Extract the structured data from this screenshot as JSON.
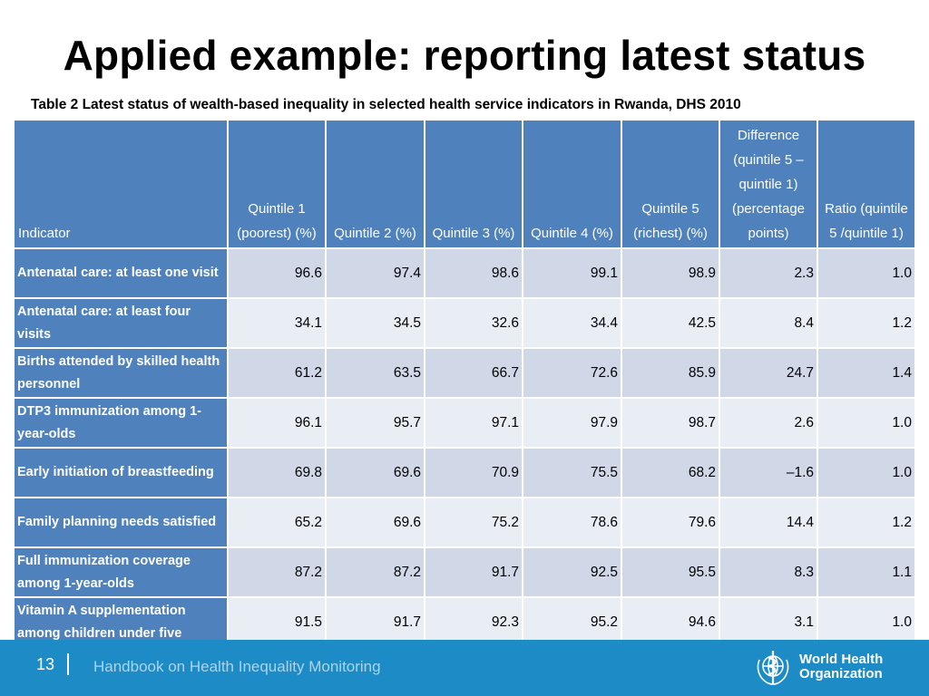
{
  "slide": {
    "title": "Applied example: reporting latest status",
    "caption": "Table 2 Latest status of wealth-based inequality in selected health service indicators in Rwanda, DHS 2010"
  },
  "table": {
    "headers": [
      "Indicator",
      "Quintile 1 (poorest) (%)",
      "Quintile 2 (%)",
      "Quintile 3 (%)",
      "Quintile 4 (%)",
      "Quintile 5 (richest) (%)",
      "Difference (quintile 5 – quintile 1) (percentage points)",
      "Ratio (quintile 5 /quintile 1)"
    ],
    "rows": [
      {
        "indicator": "Antenatal care: at least one visit",
        "values": [
          "96.6",
          "97.4",
          "98.6",
          "99.1",
          "98.9",
          "2.3",
          "1.0"
        ]
      },
      {
        "indicator": "Antenatal care: at least four visits",
        "values": [
          "34.1",
          "34.5",
          "32.6",
          "34.4",
          "42.5",
          "8.4",
          "1.2"
        ]
      },
      {
        "indicator": "Births attended by skilled health personnel",
        "values": [
          "61.2",
          "63.5",
          "66.7",
          "72.6",
          "85.9",
          "24.7",
          "1.4"
        ]
      },
      {
        "indicator": "DTP3 immunization among 1-year-olds",
        "values": [
          "96.1",
          "95.7",
          "97.1",
          "97.9",
          "98.7",
          "2.6",
          "1.0"
        ]
      },
      {
        "indicator": "Early initiation of breastfeeding",
        "values": [
          "69.8",
          "69.6",
          "70.9",
          "75.5",
          "68.2",
          "–1.6",
          "1.0"
        ]
      },
      {
        "indicator": "Family planning needs satisfied",
        "values": [
          "65.2",
          "69.6",
          "75.2",
          "78.6",
          "79.6",
          "14.4",
          "1.2"
        ]
      },
      {
        "indicator": "Full immunization coverage among 1-year-olds",
        "values": [
          "87.2",
          "87.2",
          "91.7",
          "92.5",
          "95.5",
          "8.3",
          "1.1"
        ]
      },
      {
        "indicator": "Vitamin A supplementation among children under five",
        "values": [
          "91.5",
          "91.7",
          "92.3",
          "95.2",
          "94.6",
          "3.1",
          "1.0"
        ]
      }
    ]
  },
  "footer": {
    "page_number": "13",
    "handbook_title": "Handbook on Health Inequality Monitoring",
    "org_line1": "World Health",
    "org_line2": "Organization",
    "org_emblem_icon": "who-emblem-icon"
  },
  "colors": {
    "header_blue": "#4f81bd",
    "row_light": "#e9edf4",
    "row_mid": "#d0d8e8",
    "footer_blue": "#1d8bc6"
  }
}
